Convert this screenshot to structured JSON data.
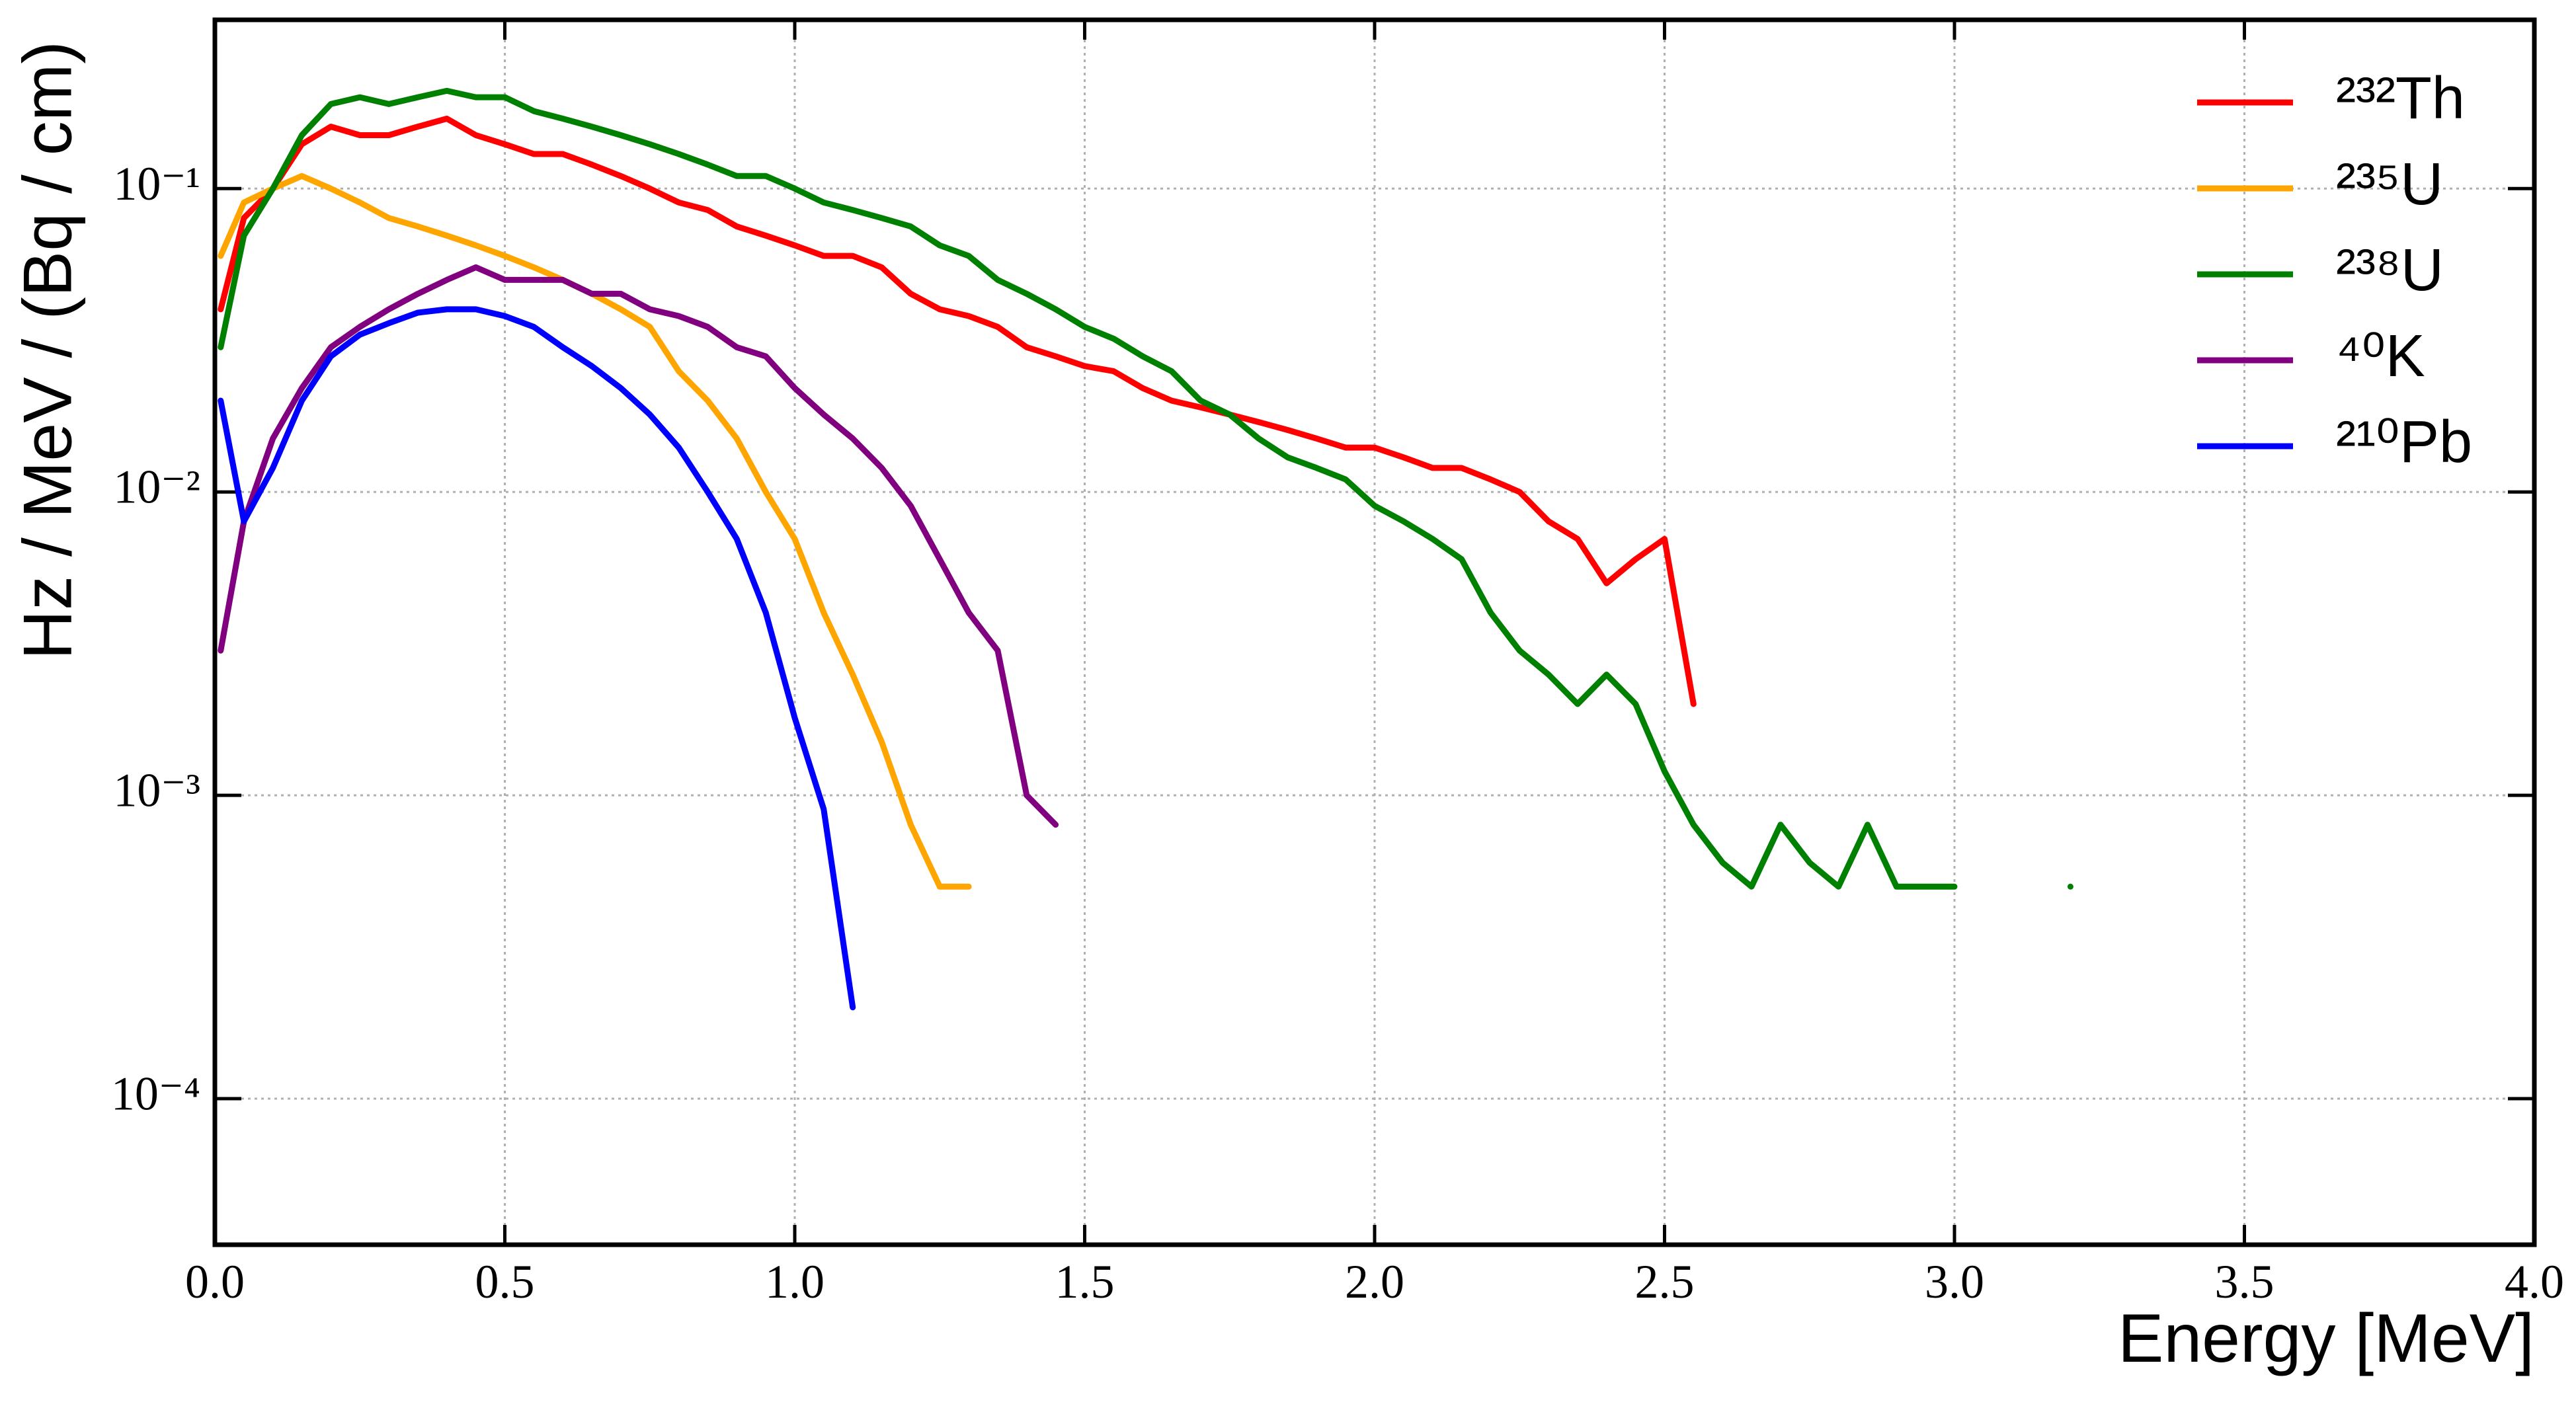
{
  "chart_data": {
    "type": "line",
    "x_label": "Energy [MeV]",
    "y_label": "Hz / MeV / (Bq / cm)",
    "log_y": true,
    "grid": true,
    "legend": "upper right",
    "xlim": [
      0,
      4
    ],
    "ylim": [
      3.3e-05,
      0.36
    ],
    "xticks": [
      {
        "value": 0,
        "label": "0.0"
      },
      0.5,
      {
        "value": 1,
        "label": "1.0"
      },
      1.5,
      {
        "value": 2,
        "label": "2.0"
      },
      2.5,
      {
        "value": 3,
        "label": "3.0"
      },
      3.5,
      {
        "value": 4,
        "label": "4.0"
      }
    ],
    "yticks": [
      {
        "value": 0.0001,
        "label": "10⁻⁴"
      },
      {
        "value": 0.001,
        "label": "10⁻³"
      },
      {
        "value": 0.01,
        "label": "10⁻²"
      },
      {
        "value": 0.1,
        "label": "10⁻¹"
      }
    ],
    "x": [
      0.01,
      0.05,
      0.1,
      0.15,
      0.2,
      0.25,
      0.3,
      0.35,
      0.4,
      0.45,
      0.5,
      0.55,
      0.6,
      0.65,
      0.7,
      0.75,
      0.8,
      0.85,
      0.9,
      0.95,
      1.0,
      1.05,
      1.1,
      1.15,
      1.2,
      1.25,
      1.3,
      1.35,
      1.4,
      1.45,
      1.5,
      1.55,
      1.6,
      1.65,
      1.7,
      1.75,
      1.8,
      1.85,
      1.9,
      1.95,
      2.0,
      2.05,
      2.1,
      2.15,
      2.2,
      2.25,
      2.3,
      2.35,
      2.4,
      2.45,
      2.5,
      2.55,
      2.6,
      2.65,
      2.7,
      2.75,
      2.8,
      2.85,
      2.9,
      2.95,
      3.0,
      3.05,
      3.1,
      3.15,
      3.2
    ],
    "series": [
      {
        "name": "²³²Th",
        "color": "#ff0000",
        "values": [
          0.04,
          0.08,
          0.1,
          0.14,
          0.16,
          0.15,
          0.15,
          0.16,
          0.17,
          0.15,
          0.14,
          0.13,
          0.13,
          0.12,
          0.11,
          0.1,
          0.09,
          0.085,
          0.075,
          0.07,
          0.065,
          0.06,
          0.06,
          0.055,
          0.045,
          0.04,
          0.038,
          0.035,
          0.03,
          0.028,
          0.026,
          0.025,
          0.022,
          0.02,
          0.019,
          0.018,
          0.017,
          0.016,
          0.015,
          0.014,
          0.014,
          0.013,
          0.012,
          0.012,
          0.011,
          0.01,
          0.008,
          0.007,
          0.005,
          0.006,
          0.007,
          0.002,
          null,
          null,
          null,
          null,
          null,
          null,
          null,
          null,
          null,
          null,
          null,
          null,
          null
        ]
      },
      {
        "name": "²³⁵U",
        "color": "#ffa500",
        "values": [
          0.06,
          0.09,
          0.1,
          0.11,
          0.1,
          0.09,
          0.08,
          0.075,
          0.07,
          0.065,
          0.06,
          0.055,
          0.05,
          0.045,
          0.04,
          0.035,
          0.025,
          0.02,
          0.015,
          0.01,
          0.007,
          0.004,
          0.0025,
          0.0015,
          0.0008,
          0.0005,
          0.0005,
          null,
          null,
          null,
          null,
          null,
          null,
          null,
          null,
          null,
          null,
          null,
          null,
          null,
          null,
          null,
          null,
          null,
          null,
          null,
          null,
          null,
          null,
          null,
          null,
          null,
          null,
          null,
          null,
          null,
          null,
          null,
          null,
          null,
          null,
          null,
          null,
          null,
          null
        ]
      },
      {
        "name": "²³⁸U",
        "color": "#008000",
        "values": [
          0.03,
          0.07,
          0.1,
          0.15,
          0.19,
          0.2,
          0.19,
          0.2,
          0.21,
          0.2,
          0.2,
          0.18,
          0.17,
          0.16,
          0.15,
          0.14,
          0.13,
          0.12,
          0.11,
          0.11,
          0.1,
          0.09,
          0.085,
          0.08,
          0.075,
          0.065,
          0.06,
          0.05,
          0.045,
          0.04,
          0.035,
          0.032,
          0.028,
          0.025,
          0.02,
          0.018,
          0.015,
          0.013,
          0.012,
          0.011,
          0.009,
          0.008,
          0.007,
          0.006,
          0.004,
          0.003,
          0.0025,
          0.002,
          0.0025,
          0.002,
          0.0012,
          0.0008,
          0.0006,
          0.0005,
          0.0008,
          0.0006,
          0.0005,
          0.0008,
          0.0005,
          0.0005,
          0.0005,
          null,
          null,
          null,
          0.0005
        ]
      },
      {
        "name": "⁴⁰K",
        "color": "#800080",
        "values": [
          0.003,
          0.008,
          0.015,
          0.022,
          0.03,
          0.035,
          0.04,
          0.045,
          0.05,
          0.055,
          0.05,
          0.05,
          0.05,
          0.045,
          0.045,
          0.04,
          0.038,
          0.035,
          0.03,
          0.028,
          0.022,
          0.018,
          0.015,
          0.012,
          0.009,
          0.006,
          0.004,
          0.003,
          0.001,
          0.0008,
          null,
          null,
          null,
          null,
          null,
          null,
          null,
          null,
          null,
          null,
          null,
          null,
          null,
          null,
          null,
          null,
          null,
          null,
          null,
          null,
          null,
          null,
          null,
          null,
          null,
          null,
          null,
          null,
          null,
          null,
          null,
          null,
          null,
          null,
          null
        ]
      },
      {
        "name": "²¹⁰Pb",
        "color": "#0000ff",
        "values": [
          0.02,
          0.008,
          0.012,
          0.02,
          0.028,
          0.033,
          0.036,
          0.039,
          0.04,
          0.04,
          0.038,
          0.035,
          0.03,
          0.026,
          0.022,
          0.018,
          0.014,
          0.01,
          0.007,
          0.004,
          0.0018,
          0.0009,
          0.0002,
          null,
          null,
          null,
          null,
          null,
          null,
          null,
          null,
          null,
          null,
          null,
          null,
          null,
          null,
          null,
          null,
          null,
          null,
          null,
          null,
          null,
          null,
          null,
          null,
          null,
          null,
          null,
          null,
          null,
          null,
          null,
          null,
          null,
          null,
          null,
          null,
          null,
          null,
          null,
          null,
          null,
          null
        ]
      }
    ]
  }
}
